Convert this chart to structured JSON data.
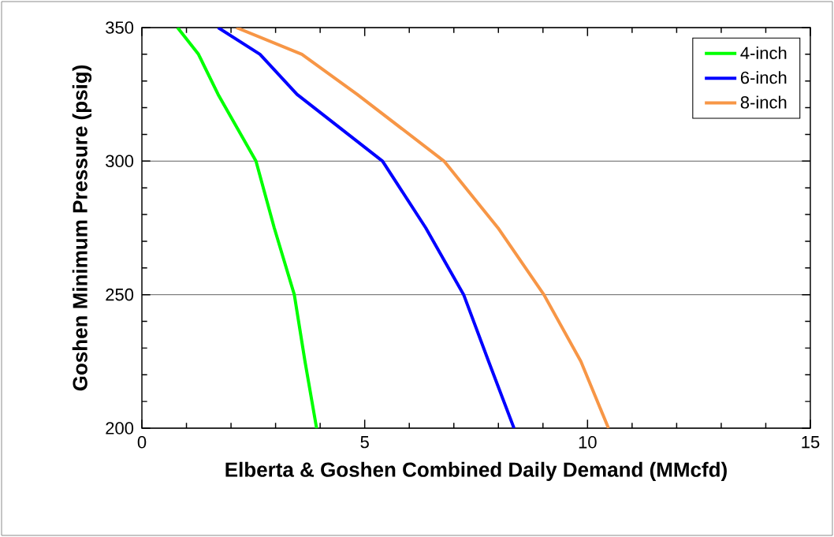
{
  "chart_data": {
    "type": "line",
    "xlabel": "Elberta & Goshen Combined Daily Demand (MMcfd)",
    "ylabel": "Goshen Minimum Pressure (psig)",
    "xlim": [
      0,
      15
    ],
    "ylim": [
      200,
      350
    ],
    "xticks": [
      0,
      5,
      10,
      15
    ],
    "yticks": [
      200,
      250,
      300,
      350
    ],
    "grid": "y",
    "legend": "top right",
    "line_style": "solid",
    "series": [
      {
        "name": "4-inch",
        "color": "#00ff00",
        "x": [
          0.8,
          1.27,
          1.71,
          2.56,
          2.97,
          3.42,
          3.66,
          3.92
        ],
        "values": [
          350,
          340,
          325,
          300,
          275,
          250,
          225,
          200
        ]
      },
      {
        "name": "6-inch",
        "color": "#0000ff",
        "x": [
          1.71,
          2.65,
          3.48,
          5.4,
          6.37,
          7.22,
          7.78,
          8.35
        ],
        "values": [
          350,
          340,
          325,
          300,
          275,
          250,
          225,
          200
        ]
      },
      {
        "name": "8-inch",
        "color": "#f79646",
        "x": [
          2.12,
          3.59,
          4.83,
          6.78,
          7.99,
          9.02,
          9.85,
          10.47
        ],
        "values": [
          350,
          340,
          325,
          300,
          275,
          250,
          225,
          200
        ]
      }
    ]
  }
}
